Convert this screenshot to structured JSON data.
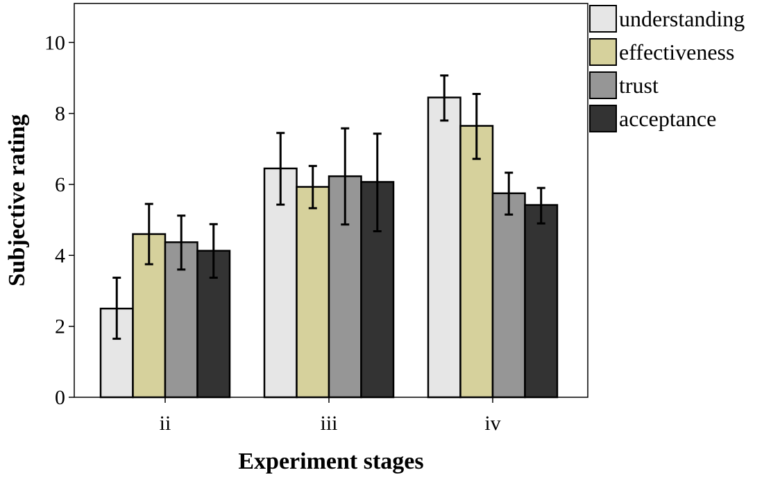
{
  "chart_data": {
    "type": "bar",
    "xlabel": "Experiment stages",
    "ylabel": "Subjective rating",
    "categories": [
      "ii",
      "iii",
      "iv"
    ],
    "ylim": [
      0,
      11.1
    ],
    "yticks": [
      0,
      2,
      4,
      6,
      8,
      10
    ],
    "grid": false,
    "legend_position": "top-right, outside plot",
    "error_bars": true,
    "series": [
      {
        "name": "understanding",
        "color": "#e6e6e6",
        "values": [
          2.5,
          6.45,
          8.45
        ],
        "err_low": [
          1.65,
          5.43,
          7.8
        ],
        "err_high": [
          3.37,
          7.45,
          9.07
        ]
      },
      {
        "name": "effectiveness",
        "color": "#d6d19c",
        "values": [
          4.6,
          5.93,
          7.65
        ],
        "err_low": [
          3.75,
          5.33,
          6.72
        ],
        "err_high": [
          5.45,
          6.52,
          8.55
        ]
      },
      {
        "name": "trust",
        "color": "#969696",
        "values": [
          4.37,
          6.23,
          5.75
        ],
        "err_low": [
          3.6,
          4.87,
          5.15
        ],
        "err_high": [
          5.12,
          7.58,
          6.33
        ]
      },
      {
        "name": "acceptance",
        "color": "#333333",
        "values": [
          4.13,
          6.07,
          5.42
        ],
        "err_low": [
          3.37,
          4.68,
          4.9
        ],
        "err_high": [
          4.88,
          7.43,
          5.9
        ]
      }
    ]
  }
}
